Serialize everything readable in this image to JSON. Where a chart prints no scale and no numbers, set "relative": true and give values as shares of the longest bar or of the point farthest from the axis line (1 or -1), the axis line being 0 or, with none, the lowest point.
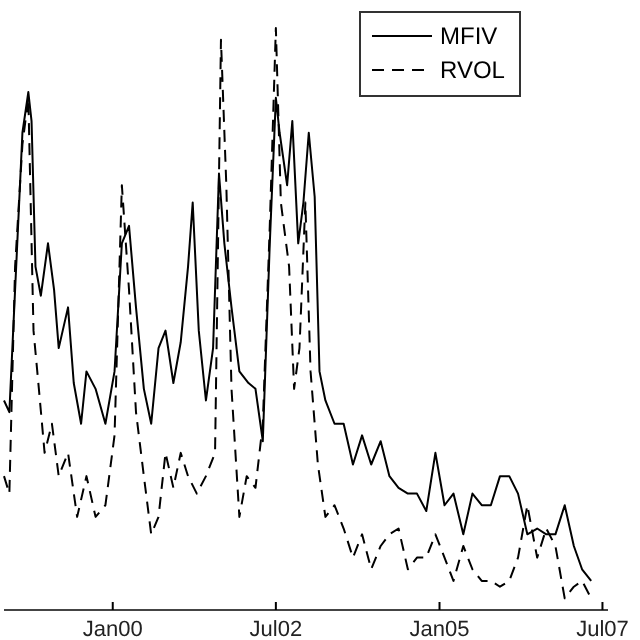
{
  "chart_data": {
    "type": "line",
    "relative": true,
    "legend": "top right",
    "xlim": [
      "1998-05-03",
      "2007-08-01"
    ],
    "xticks": [
      {
        "value": "2000-01-01",
        "label": "Jan00"
      },
      {
        "value": "2002-07-01",
        "label": "Jul02"
      },
      {
        "value": "2005-01-01",
        "label": "Jan05"
      },
      {
        "value": "2007-07-01",
        "label": "Jul07"
      }
    ],
    "series": [
      {
        "name": "MFIV",
        "color": "#000000",
        "line_style": "solid",
        "x": [
          "1998-05-03",
          "1998-06-02",
          "1998-07-04",
          "1998-08-14",
          "1998-09-16",
          "1998-10-04",
          "1998-10-26",
          "1998-11-25",
          "1999-01-04",
          "1999-02-07",
          "1999-03-05",
          "1999-04-26",
          "1999-05-28",
          "1999-07-08",
          "1999-08-07",
          "1999-09-27",
          "1999-11-21",
          "2000-01-11",
          "2000-02-21",
          "2000-04-01",
          "2000-05-10",
          "2000-06-23",
          "2000-08-03",
          "2000-09-13",
          "2000-10-22",
          "2000-12-05",
          "2001-01-15",
          "2001-02-25",
          "2001-03-23",
          "2001-04-26",
          "2001-06-05",
          "2001-07-15",
          "2001-08-17",
          "2001-09-16",
          "2001-10-26",
          "2001-12-09",
          "2002-01-29",
          "2002-03-09",
          "2002-04-19",
          "2002-05-28",
          "2002-07-01",
          "2002-07-22",
          "2002-09-02",
          "2002-10-01",
          "2002-11-03",
          "2002-12-02",
          "2003-01-01",
          "2003-02-03",
          "2003-03-02",
          "2003-04-04",
          "2003-05-25",
          "2003-07-15",
          "2003-09-05",
          "2003-10-26",
          "2003-12-16",
          "2004-02-07",
          "2004-03-27",
          "2004-05-17",
          "2004-07-08",
          "2004-08-28",
          "2004-10-19",
          "2004-12-09",
          "2005-01-29",
          "2005-03-20",
          "2005-05-14",
          "2005-07-04",
          "2005-08-25",
          "2005-10-15",
          "2005-12-05",
          "2006-01-26",
          "2006-03-16",
          "2006-05-07",
          "2006-07-01",
          "2006-08-21",
          "2006-10-11",
          "2006-12-02",
          "2007-01-22",
          "2007-03-09",
          "2007-04-29"
        ],
        "values": [
          0.36,
          0.34,
          0.55,
          0.82,
          0.89,
          0.84,
          0.59,
          0.54,
          0.63,
          0.55,
          0.45,
          0.52,
          0.39,
          0.32,
          0.41,
          0.38,
          0.32,
          0.41,
          0.63,
          0.66,
          0.52,
          0.38,
          0.32,
          0.45,
          0.48,
          0.39,
          0.46,
          0.59,
          0.7,
          0.48,
          0.36,
          0.45,
          0.75,
          0.63,
          0.52,
          0.41,
          0.39,
          0.38,
          0.29,
          0.63,
          0.88,
          0.82,
          0.73,
          0.84,
          0.63,
          0.7,
          0.82,
          0.71,
          0.41,
          0.36,
          0.32,
          0.32,
          0.25,
          0.3,
          0.25,
          0.29,
          0.23,
          0.21,
          0.2,
          0.2,
          0.17,
          0.27,
          0.18,
          0.2,
          0.13,
          0.2,
          0.18,
          0.18,
          0.23,
          0.23,
          0.2,
          0.13,
          0.14,
          0.13,
          0.13,
          0.18,
          0.11,
          0.07,
          0.05
        ]
      },
      {
        "name": "RVOL",
        "color": "#000000",
        "line_style": "dashed",
        "x": [
          "1998-05-03",
          "1998-06-02",
          "1998-07-04",
          "1998-08-14",
          "1998-09-16",
          "1998-10-15",
          "1998-11-14",
          "1998-12-16",
          "1999-01-26",
          "1999-03-05",
          "1999-04-26",
          "1999-06-16",
          "1999-08-07",
          "1999-09-27",
          "1999-11-21",
          "2000-01-11",
          "2000-02-21",
          "2000-04-01",
          "2000-05-10",
          "2000-06-23",
          "2000-08-03",
          "2000-09-13",
          "2000-10-22",
          "2000-12-05",
          "2001-01-15",
          "2001-02-25",
          "2001-04-15",
          "2001-06-05",
          "2001-07-26",
          "2001-08-28",
          "2001-09-27",
          "2001-10-26",
          "2001-12-09",
          "2002-01-19",
          "2002-03-09",
          "2002-04-19",
          "2002-05-28",
          "2002-07-01",
          "2002-07-29",
          "2002-09-13",
          "2002-10-11",
          "2002-11-10",
          "2002-12-13",
          "2003-01-11",
          "2003-02-21",
          "2003-04-04",
          "2003-05-25",
          "2003-07-15",
          "2003-09-05",
          "2003-10-26",
          "2003-12-16",
          "2004-02-07",
          "2004-03-27",
          "2004-05-17",
          "2004-07-08",
          "2004-08-28",
          "2004-10-19",
          "2004-12-09",
          "2005-01-29",
          "2005-03-20",
          "2005-05-14",
          "2005-07-04",
          "2005-08-25",
          "2005-10-15",
          "2005-12-05",
          "2006-01-26",
          "2006-03-16",
          "2006-05-07",
          "2006-07-01",
          "2006-08-21",
          "2006-10-11",
          "2006-12-02",
          "2007-01-22",
          "2007-03-09",
          "2007-04-29"
        ],
        "values": [
          0.23,
          0.2,
          0.59,
          0.8,
          0.88,
          0.48,
          0.38,
          0.27,
          0.32,
          0.23,
          0.27,
          0.16,
          0.23,
          0.16,
          0.18,
          0.3,
          0.73,
          0.55,
          0.34,
          0.23,
          0.13,
          0.16,
          0.27,
          0.21,
          0.27,
          0.23,
          0.2,
          0.23,
          0.27,
          0.98,
          0.73,
          0.38,
          0.16,
          0.23,
          0.21,
          0.32,
          0.66,
          1,
          0.7,
          0.59,
          0.38,
          0.45,
          0.7,
          0.41,
          0.25,
          0.16,
          0.18,
          0.14,
          0.09,
          0.13,
          0.07,
          0.11,
          0.13,
          0.14,
          0.07,
          0.09,
          0.09,
          0.13,
          0.09,
          0.05,
          0.11,
          0.07,
          0.05,
          0.05,
          0.04,
          0.05,
          0.09,
          0.18,
          0.09,
          0.14,
          0.11,
          0.02,
          0.04,
          0.05,
          0.02
        ]
      }
    ]
  }
}
